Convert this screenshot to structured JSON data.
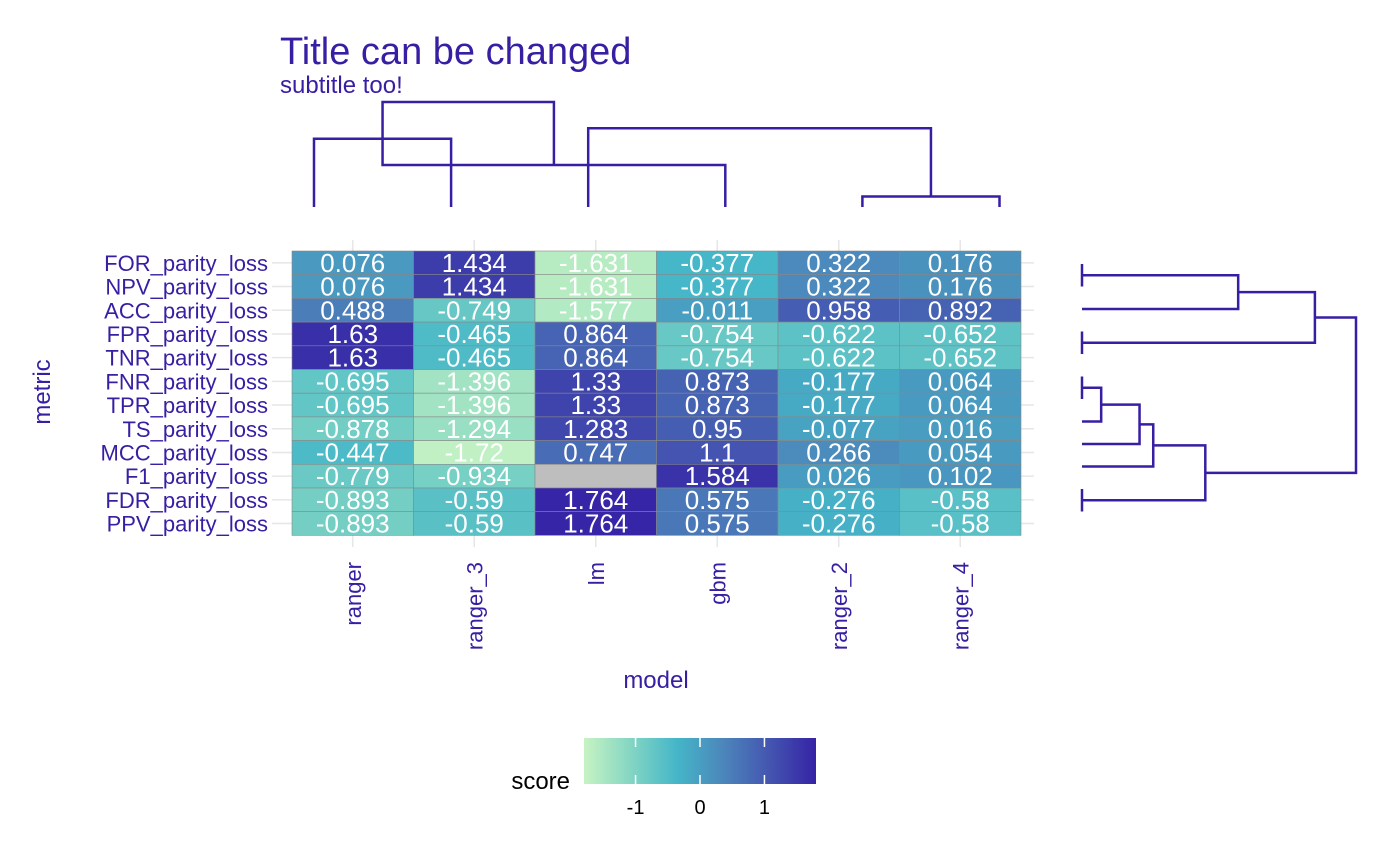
{
  "chart_data": {
    "type": "heatmap",
    "title": "Title can be changed",
    "subtitle": "subtitle too!",
    "xlabel": "model",
    "ylabel": "metric",
    "x_categories": [
      "ranger",
      "ranger_3",
      "lm",
      "gbm",
      "ranger_2",
      "ranger_4"
    ],
    "y_categories": [
      "FOR_parity_loss",
      "NPV_parity_loss",
      "ACC_parity_loss",
      "FPR_parity_loss",
      "TNR_parity_loss",
      "FNR_parity_loss",
      "TPR_parity_loss",
      "TS_parity_loss",
      "MCC_parity_loss",
      "F1_parity_loss",
      "FDR_parity_loss",
      "PPV_parity_loss"
    ],
    "values": [
      [
        0.076,
        1.434,
        -1.631,
        -0.377,
        0.322,
        0.176
      ],
      [
        0.076,
        1.434,
        -1.631,
        -0.377,
        0.322,
        0.176
      ],
      [
        0.488,
        -0.749,
        -1.577,
        -0.011,
        0.958,
        0.892
      ],
      [
        1.63,
        -0.465,
        0.864,
        -0.754,
        -0.622,
        -0.652
      ],
      [
        1.63,
        -0.465,
        0.864,
        -0.754,
        -0.622,
        -0.652
      ],
      [
        -0.695,
        -1.396,
        1.33,
        0.873,
        -0.177,
        0.064
      ],
      [
        -0.695,
        -1.396,
        1.33,
        0.873,
        -0.177,
        0.064
      ],
      [
        -0.878,
        -1.294,
        1.283,
        0.95,
        -0.077,
        0.016
      ],
      [
        -0.447,
        -1.72,
        0.747,
        1.1,
        0.266,
        0.054
      ],
      [
        -0.779,
        -0.934,
        null,
        1.584,
        0.026,
        0.102
      ],
      [
        -0.893,
        -0.59,
        1.764,
        0.575,
        -0.276,
        -0.58
      ],
      [
        -0.893,
        -0.59,
        1.764,
        0.575,
        -0.276,
        -0.58
      ]
    ],
    "value_labels": [
      [
        "0.076",
        "1.434",
        "-1.631",
        "-0.377",
        "0.322",
        "0.176"
      ],
      [
        "0.076",
        "1.434",
        "-1.631",
        "-0.377",
        "0.322",
        "0.176"
      ],
      [
        "0.488",
        "-0.749",
        "-1.577",
        "-0.011",
        "0.958",
        "0.892"
      ],
      [
        "1.63",
        "-0.465",
        "0.864",
        "-0.754",
        "-0.622",
        "-0.652"
      ],
      [
        "1.63",
        "-0.465",
        "0.864",
        "-0.754",
        "-0.622",
        "-0.652"
      ],
      [
        "-0.695",
        "-1.396",
        "1.33",
        "0.873",
        "-0.177",
        "0.064"
      ],
      [
        "-0.695",
        "-1.396",
        "1.33",
        "0.873",
        "-0.177",
        "0.064"
      ],
      [
        "-0.878",
        "-1.294",
        "1.283",
        "0.95",
        "-0.077",
        "0.016"
      ],
      [
        "-0.447",
        "-1.72",
        "0.747",
        "1.1",
        "0.266",
        "0.054"
      ],
      [
        "-0.779",
        "-0.934",
        "",
        "1.584",
        "0.026",
        "0.102"
      ],
      [
        "-0.893",
        "-0.59",
        "1.764",
        "0.575",
        "-0.276",
        "-0.58"
      ],
      [
        "-0.893",
        "-0.59",
        "1.764",
        "0.575",
        "-0.276",
        "-0.58"
      ]
    ],
    "missing_color": "#bebebe",
    "legend": {
      "title": "score",
      "position": "bottom",
      "range": [
        -1.8,
        1.8
      ],
      "ticks": [
        -1,
        0,
        1
      ],
      "tick_labels": [
        "-1",
        "0",
        "1"
      ],
      "color_stops": [
        "#c7f3c3",
        "#84d6c3",
        "#45b6c8",
        "#4c86bb",
        "#4455b0",
        "#3623a6"
      ]
    },
    "dendrograms": {
      "columns": {
        "order": [
          "ranger",
          "ranger_3",
          "lm",
          "gbm",
          "ranger_2",
          "ranger_4"
        ],
        "merges": [
          [
            0,
            1,
            0.65
          ],
          [
            4,
            5,
            0.1
          ],
          [
            3,
            6,
            0.4
          ],
          [
            2,
            7,
            0.75
          ],
          [
            6,
            8,
            1.0
          ]
        ]
      },
      "rows": {
        "order": [
          "FOR_parity_loss",
          "NPV_parity_loss",
          "ACC_parity_loss",
          "FPR_parity_loss",
          "TNR_parity_loss",
          "FNR_parity_loss",
          "TPR_parity_loss",
          "TS_parity_loss",
          "MCC_parity_loss",
          "F1_parity_loss",
          "FDR_parity_loss",
          "PPV_parity_loss"
        ],
        "merges": [
          [
            0,
            1,
            0.0
          ],
          [
            12,
            2,
            0.57
          ],
          [
            3,
            4,
            0.0
          ],
          [
            13,
            14,
            0.85
          ],
          [
            5,
            6,
            0.0
          ],
          [
            16,
            7,
            0.07
          ],
          [
            17,
            8,
            0.21
          ],
          [
            18,
            9,
            0.26
          ],
          [
            10,
            11,
            0.0
          ],
          [
            19,
            20,
            0.45
          ],
          [
            15,
            21,
            1.0
          ]
        ]
      }
    },
    "grid": true
  },
  "colors": {
    "text": "#371ea3",
    "dendrogram": "#371ea3",
    "cell_text": "#ffffff",
    "cell_border": "#888888",
    "grid": "#e6e6e6"
  }
}
